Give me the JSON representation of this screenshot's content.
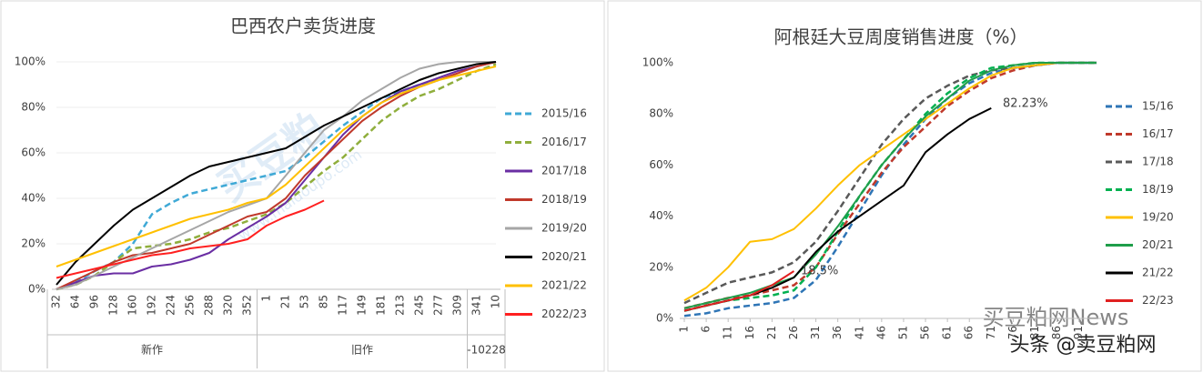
{
  "chart_data": [
    {
      "type": "line",
      "title": "巴西农户卖货进度",
      "categories": [
        "32",
        "64",
        "96",
        "128",
        "160",
        "192",
        "224",
        "256",
        "288",
        "320",
        "352",
        "1",
        "21",
        "53",
        "85",
        "117",
        "149",
        "181",
        "213",
        "245",
        "277",
        "309",
        "341",
        "10"
      ],
      "x_group_labels": [
        "新作",
        "旧作",
        "-10228"
      ],
      "ylim": [
        0,
        100
      ],
      "yticks": [
        {
          "value": 0,
          "label": "0%"
        },
        {
          "value": 20,
          "label": "20%"
        },
        {
          "value": 40,
          "label": "40%"
        },
        {
          "value": 60,
          "label": "60%"
        },
        {
          "value": 80,
          "label": "80%"
        },
        {
          "value": 100,
          "label": "100%"
        }
      ],
      "grid": true,
      "legend": "right",
      "series": [
        {
          "name": "2015/16",
          "color": "#3fa9d6",
          "dashed": true,
          "values": [
            0,
            3,
            8,
            12,
            20,
            33,
            38,
            42,
            44,
            46,
            48,
            50,
            52,
            58,
            65,
            72,
            78,
            84,
            87,
            90,
            92,
            null,
            null,
            null
          ]
        },
        {
          "name": "2016/17",
          "color": "#8fae3c",
          "dashed": true,
          "values": [
            0,
            2,
            6,
            12,
            18,
            19,
            20,
            22,
            25,
            27,
            30,
            33,
            38,
            45,
            52,
            58,
            66,
            74,
            80,
            85,
            88,
            92,
            96,
            99
          ]
        },
        {
          "name": "2017/18",
          "color": "#6a2ea3",
          "dashed": false,
          "values": [
            0,
            3,
            6,
            7,
            7,
            10,
            11,
            13,
            16,
            22,
            27,
            32,
            38,
            48,
            58,
            68,
            76,
            82,
            87,
            90,
            93,
            96,
            98,
            100
          ]
        },
        {
          "name": "2018/19",
          "color": "#c0392b",
          "dashed": false,
          "values": [
            0,
            4,
            8,
            12,
            15,
            16,
            18,
            20,
            24,
            28,
            32,
            34,
            40,
            50,
            58,
            66,
            74,
            80,
            85,
            89,
            92,
            95,
            98,
            100
          ]
        },
        {
          "name": "2019/20",
          "color": "#a6a6a6",
          "dashed": false,
          "values": [
            0,
            2,
            6,
            10,
            14,
            18,
            22,
            26,
            30,
            34,
            37,
            40,
            50,
            60,
            70,
            76,
            83,
            88,
            93,
            97,
            99,
            100,
            100,
            100
          ]
        },
        {
          "name": "2020/21",
          "color": "#000000",
          "dashed": false,
          "values": [
            2,
            12,
            20,
            28,
            35,
            40,
            45,
            50,
            54,
            56,
            58,
            60,
            62,
            67,
            72,
            76,
            80,
            84,
            88,
            92,
            95,
            97,
            99,
            100
          ]
        },
        {
          "name": "2021/22",
          "color": "#ffc000",
          "dashed": false,
          "values": [
            10,
            13,
            16,
            19,
            22,
            25,
            28,
            31,
            33,
            35,
            38,
            40,
            46,
            54,
            62,
            70,
            76,
            82,
            86,
            89,
            92,
            94,
            96,
            98
          ]
        },
        {
          "name": "2022/23",
          "color": "#ff2020",
          "dashed": false,
          "values": [
            5,
            7,
            9,
            11,
            13,
            15,
            16,
            18,
            19,
            20,
            22,
            28,
            32,
            35,
            39,
            null,
            null,
            null,
            null,
            null,
            null,
            null,
            null,
            null
          ]
        }
      ]
    },
    {
      "type": "line",
      "title": "阿根廷大豆周度销售进度（%）",
      "x": [
        1,
        6,
        11,
        16,
        21,
        26,
        31,
        36,
        41,
        46,
        51,
        56,
        61,
        66,
        71,
        76,
        81,
        86,
        91,
        95
      ],
      "xlim": [
        1,
        95
      ],
      "xticks": [
        1,
        6,
        11,
        16,
        21,
        26,
        31,
        36,
        41,
        46,
        51,
        56,
        61,
        66,
        71,
        76,
        81,
        86,
        91
      ],
      "ylim": [
        0,
        100
      ],
      "yticks": [
        {
          "value": 0,
          "label": "0%"
        },
        {
          "value": 20,
          "label": "20%"
        },
        {
          "value": 40,
          "label": "40%"
        },
        {
          "value": 60,
          "label": "60%"
        },
        {
          "value": 80,
          "label": "80%"
        },
        {
          "value": 100,
          "label": "100%"
        }
      ],
      "grid": false,
      "legend": "right",
      "annotations": [
        "82.23%",
        "18.5%"
      ],
      "series": [
        {
          "name": "15/16",
          "color": "#2e75b6",
          "dashed": true,
          "values": [
            1,
            2,
            4,
            5,
            6,
            8,
            15,
            28,
            42,
            56,
            68,
            78,
            86,
            92,
            96,
            98,
            99,
            100,
            100,
            100
          ]
        },
        {
          "name": "16/17",
          "color": "#c0392b",
          "dashed": true,
          "values": [
            4,
            6,
            8,
            9,
            11,
            13,
            20,
            33,
            45,
            57,
            67,
            75,
            83,
            89,
            94,
            97,
            99,
            100,
            100,
            100
          ]
        },
        {
          "name": "17/18",
          "color": "#595959",
          "dashed": true,
          "values": [
            6,
            10,
            14,
            16,
            18,
            22,
            30,
            42,
            55,
            68,
            78,
            86,
            91,
            95,
            97,
            98,
            99,
            100,
            100,
            100
          ]
        },
        {
          "name": "18/19",
          "color": "#00b050",
          "dashed": true,
          "values": [
            3,
            5,
            7,
            8,
            9,
            11,
            20,
            34,
            48,
            60,
            70,
            80,
            88,
            94,
            98,
            99,
            100,
            100,
            100,
            100
          ]
        },
        {
          "name": "19/20",
          "color": "#ffc000",
          "dashed": false,
          "values": [
            7,
            12,
            20,
            30,
            31,
            35,
            43,
            52,
            60,
            66,
            72,
            78,
            84,
            90,
            95,
            98,
            99,
            100,
            100,
            100
          ]
        },
        {
          "name": "20/21",
          "color": "#1f9e4a",
          "dashed": false,
          "values": [
            4,
            6,
            8,
            10,
            13,
            16,
            25,
            36,
            48,
            60,
            70,
            79,
            86,
            93,
            97,
            99,
            100,
            100,
            100,
            100
          ]
        },
        {
          "name": "21/22",
          "color": "#000000",
          "dashed": false,
          "values": [
            3,
            5,
            7,
            9,
            12,
            16,
            26,
            34,
            40,
            46,
            52,
            65,
            72,
            78,
            82.23,
            null,
            null,
            null,
            null,
            null
          ]
        },
        {
          "name": "22/23",
          "color": "#e02020",
          "dashed": false,
          "values": [
            3,
            5,
            7,
            9,
            13,
            18.5,
            null,
            null,
            null,
            null,
            null,
            null,
            null,
            null,
            null,
            null,
            null,
            null,
            null,
            null
          ]
        }
      ]
    }
  ],
  "watermarks": [
    "买豆粕",
    "www.maidoupo.com",
    "买豆粕网News",
    "头条 @卖豆粕网"
  ]
}
